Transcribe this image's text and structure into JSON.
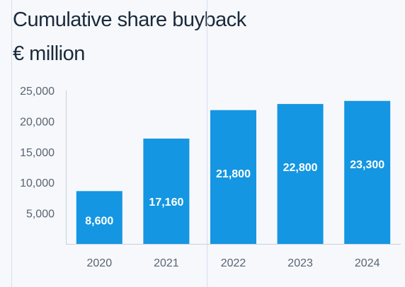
{
  "chart_data": {
    "type": "bar",
    "title": "Cumulative share buyback",
    "subtitle": "€ million",
    "categories": [
      "2020",
      "2021",
      "2022",
      "2023",
      "2024"
    ],
    "values": [
      8600,
      17160,
      21800,
      22800,
      23300
    ],
    "data_labels": [
      "8,600",
      "17,160",
      "21,800",
      "22,800",
      "23,300"
    ],
    "yticks": [
      5000,
      10000,
      15000,
      20000,
      25000
    ],
    "ytick_labels": [
      "5,000",
      "10,000",
      "15,000",
      "20,000",
      "25,000"
    ],
    "ylim": [
      0,
      25000
    ],
    "xlabel": "",
    "ylabel": "",
    "grid": false,
    "legend": "none",
    "colors": {
      "bar": "#1496e2",
      "data_label": "#ffffff",
      "tick_label": "#5a6470",
      "axis": "#c9d0da",
      "guide": "#d7deea",
      "text": "#1b2a3a"
    }
  }
}
